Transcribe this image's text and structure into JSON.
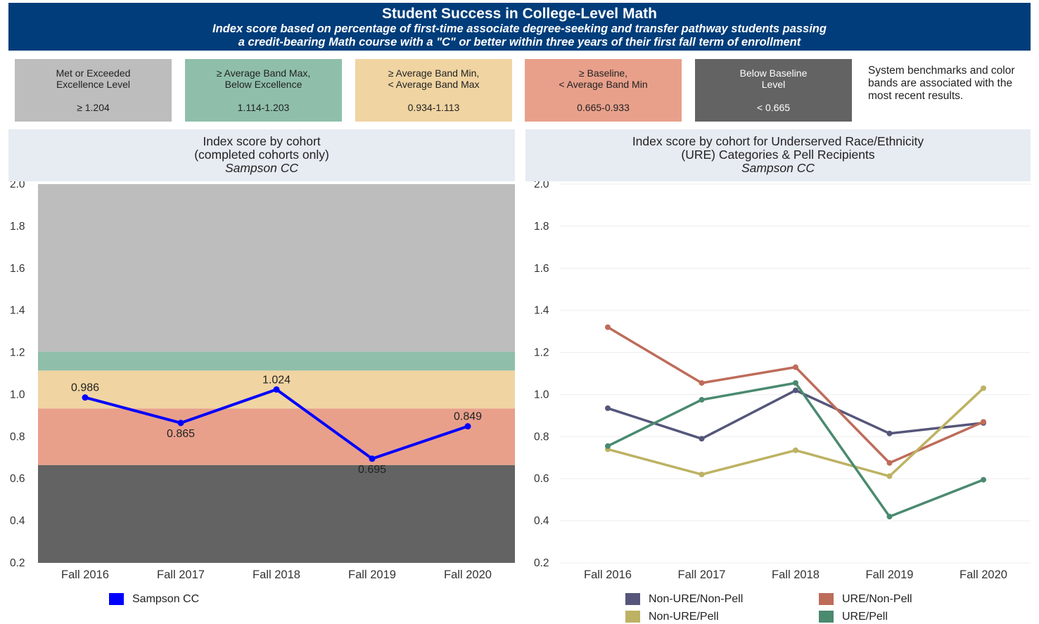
{
  "header": {
    "title": "Student Success in College-Level Math",
    "subtitle_line1": "Index score based on percentage of first-time associate degree-seeking and transfer pathway students passing",
    "subtitle_line2": "a credit-bearing Math course with a \"C\" or better within three years of their first fall term of enrollment"
  },
  "bands": [
    {
      "label1": "Met or Exceeded",
      "label2": "Excellence Level",
      "range": "≥ 1.204",
      "color": "#bdbdbd",
      "text_color": "#222222"
    },
    {
      "label1": "≥ Average Band Max,",
      "label2": "Below Excellence",
      "range": "1.114-1.203",
      "color": "#8fbfaa",
      "text_color": "#222222"
    },
    {
      "label1": "≥ Average Band Min,",
      "label2": "< Average Band Max",
      "range": "0.934-1.113",
      "color": "#f0d4a2",
      "text_color": "#222222"
    },
    {
      "label1": "≥ Baseline,",
      "label2": "< Average Band Min",
      "range": "0.665-0.933",
      "color": "#e8a08b",
      "text_color": "#222222"
    },
    {
      "label1": "Below Baseline",
      "label2": "Level",
      "range": "< 0.665",
      "color": "#636363",
      "text_color": "#ffffff"
    }
  ],
  "note": "System benchmarks and color bands are associated with the most recent results.",
  "left_panel": {
    "title_line1": "Index score by cohort",
    "title_line2": "(completed cohorts only)",
    "college": "Sampson CC"
  },
  "right_panel": {
    "title_line1": "Index score by cohort for Underserved Race/Ethnicity",
    "title_line2": "(URE) Categories & Pell Recipients",
    "college": "Sampson CC"
  },
  "chart_data": [
    {
      "type": "line",
      "categories": [
        "Fall 2016",
        "Fall 2017",
        "Fall 2018",
        "Fall 2019",
        "Fall 2020"
      ],
      "ylim": [
        0.2,
        2.0
      ],
      "yticks": [
        "0.2",
        "0.4",
        "0.6",
        "0.8",
        "1.0",
        "1.2",
        "1.4",
        "1.6",
        "1.8",
        "2.0"
      ],
      "background_bands": [
        {
          "from": 0.2,
          "to": 0.665,
          "color": "#636363"
        },
        {
          "from": 0.665,
          "to": 0.934,
          "color": "#e8a08b"
        },
        {
          "from": 0.934,
          "to": 1.114,
          "color": "#f0d4a2"
        },
        {
          "from": 1.114,
          "to": 1.204,
          "color": "#8fbfaa"
        },
        {
          "from": 1.204,
          "to": 2.0,
          "color": "#bdbdbd"
        }
      ],
      "series": [
        {
          "name": "Sampson CC",
          "color": "#0000ff",
          "values": [
            0.986,
            0.865,
            1.024,
            0.695,
            0.849
          ],
          "labels": [
            "0.986",
            "0.865",
            "1.024",
            "0.695",
            "0.849"
          ]
        }
      ]
    },
    {
      "type": "line",
      "categories": [
        "Fall 2016",
        "Fall 2017",
        "Fall 2018",
        "Fall 2019",
        "Fall 2020"
      ],
      "ylim": [
        0.2,
        2.0
      ],
      "yticks": [
        "0.2",
        "0.4",
        "0.6",
        "0.8",
        "1.0",
        "1.2",
        "1.4",
        "1.6",
        "1.8",
        "2.0"
      ],
      "grid": true,
      "series": [
        {
          "name": "Non-URE/Non-Pell",
          "color": "#55567a",
          "values": [
            0.935,
            0.79,
            1.02,
            0.815,
            0.865
          ]
        },
        {
          "name": "URE/Non-Pell",
          "color": "#be6c5a",
          "values": [
            1.32,
            1.055,
            1.13,
            0.675,
            0.87
          ]
        },
        {
          "name": "Non-URE/Pell",
          "color": "#bdb263",
          "values": [
            0.74,
            0.62,
            0.735,
            0.612,
            1.03
          ]
        },
        {
          "name": "URE/Pell",
          "color": "#4a8a6f",
          "values": [
            0.755,
            0.975,
            1.055,
            0.42,
            0.595
          ]
        }
      ]
    }
  ]
}
